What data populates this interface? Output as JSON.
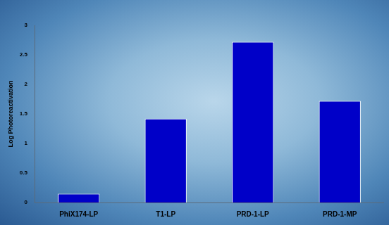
{
  "chart_data": {
    "type": "bar",
    "ylabel": "Log Photoreactivation",
    "categories": [
      "PhiX174-LP",
      "T1-LP",
      "PRD-1-LP",
      "PRD-1-MP"
    ],
    "values": [
      0.15,
      1.42,
      2.72,
      1.72
    ],
    "color": "#0000c8",
    "ylim": [
      0,
      3
    ],
    "yticks": [
      0,
      0.5,
      1,
      1.5,
      2,
      2.5,
      3
    ],
    "grid": false
  }
}
